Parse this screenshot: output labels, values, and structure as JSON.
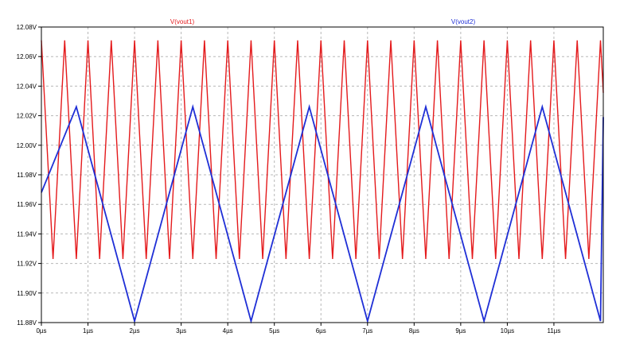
{
  "chart_data": {
    "type": "line",
    "x_unit": "µs",
    "y_unit": "V",
    "xlim": [
      0,
      12.06
    ],
    "ylim": [
      11.88,
      12.08
    ],
    "x_ticks": [
      "0µs",
      "1µs",
      "2µs",
      "3µs",
      "4µs",
      "5µs",
      "6µs",
      "7µs",
      "8µs",
      "9µs",
      "10µs",
      "11µs"
    ],
    "x_tick_values": [
      0,
      1,
      2,
      3,
      4,
      5,
      6,
      7,
      8,
      9,
      10,
      11
    ],
    "y_ticks": [
      "11.88V",
      "11.90V",
      "11.92V",
      "11.94V",
      "11.96V",
      "11.98V",
      "12.00V",
      "12.02V",
      "12.04V",
      "12.06V",
      "12.08V"
    ],
    "y_tick_values": [
      11.88,
      11.9,
      11.92,
      11.94,
      11.96,
      11.98,
      12.0,
      12.02,
      12.04,
      12.06,
      12.08
    ],
    "grid": true,
    "legend_placement": "top",
    "series": [
      {
        "name": "V(vout1)",
        "color": "#e41a1c",
        "shape": "triangle",
        "period": 0.5,
        "min": 11.923,
        "max": 12.071,
        "first_peak": 0.0
      },
      {
        "name": "V(vout2)",
        "color": "#1f2fd6",
        "shape": "triangle",
        "period": 2.5,
        "min": 11.881,
        "max": 12.026,
        "first_peak": -0.5
      }
    ]
  }
}
